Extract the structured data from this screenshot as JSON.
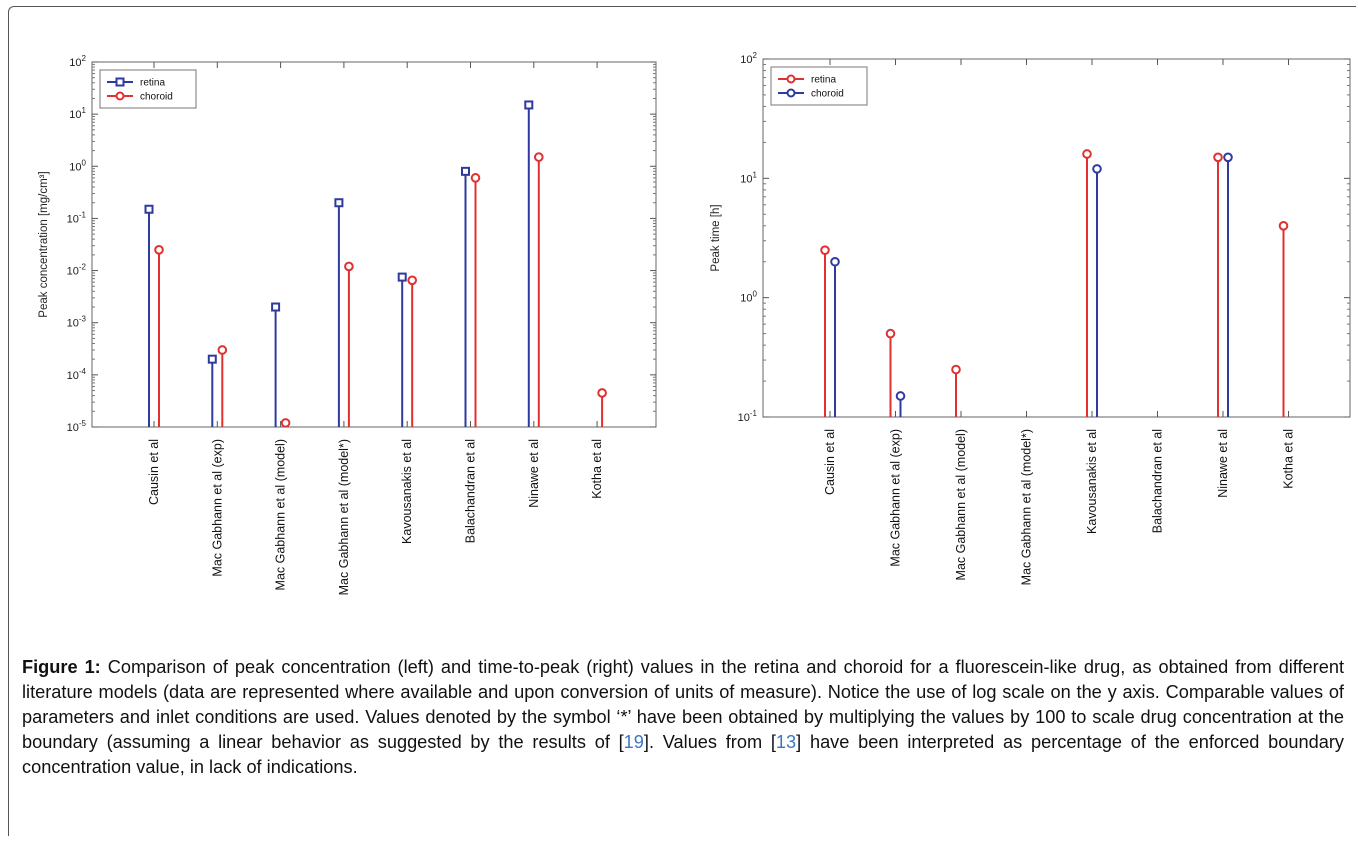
{
  "chart_data": [
    {
      "type": "stem",
      "ylabel": "Peak concentration [mg/cm³]",
      "yscale": "log",
      "ylim": [
        1e-05,
        100
      ],
      "ytick_labels": [
        "10-5",
        "10-4",
        "10-3",
        "10-2",
        "10-1",
        "100",
        "101",
        "102"
      ],
      "categories": [
        "Causin et al",
        "Mac Gabhann et al (exp)",
        "Mac Gabhann et al (model)",
        "Mac Gabhann et al (model*)",
        "Kavousanakis et al",
        "Balachandran et al",
        "Ninawe et al",
        "Kotha et al"
      ],
      "legend_position": "top-left",
      "series": [
        {
          "name": "retina",
          "color": "#2e3a9e",
          "marker": "square",
          "values": [
            0.15,
            0.0002,
            0.002,
            0.2,
            0.0075,
            0.8,
            15,
            null
          ]
        },
        {
          "name": "choroid",
          "color": "#e03030",
          "marker": "circle",
          "values": [
            0.025,
            0.0003,
            1.2e-05,
            0.012,
            0.0065,
            0.6,
            1.5,
            4.5e-05
          ]
        }
      ]
    },
    {
      "type": "stem",
      "ylabel": "Peak time [h]",
      "yscale": "log",
      "ylim": [
        0.1,
        100
      ],
      "ytick_labels": [
        "10-1",
        "100",
        "101",
        "102"
      ],
      "categories": [
        "Causin et al",
        "Mac Gabhann et al (exp)",
        "Mac Gabhann et al (model)",
        "Mac Gabhann et al (model*)",
        "Kavousanakis et al",
        "Balachandran et al",
        "Ninawe et al",
        "Kotha et al"
      ],
      "legend_position": "top-left",
      "series": [
        {
          "name": "retina",
          "color": "#e03030",
          "marker": "circle",
          "values": [
            2.5,
            0.5,
            0.25,
            null,
            16,
            null,
            15,
            4
          ]
        },
        {
          "name": "choroid",
          "color": "#2e3a9e",
          "marker": "circle",
          "values": [
            2,
            0.15,
            null,
            null,
            12,
            null,
            15,
            null
          ]
        }
      ]
    }
  ],
  "caption": {
    "label": "Figure 1:",
    "part1": " Comparison of peak concentration (left) and time-to-peak (right) values in the retina and choroid for a fluorescein-like drug, as obtained from different literature models (data are represented where available and upon conversion of units of measure). Notice the use of log scale on the y axis. Comparable values of parameters and inlet conditions are used. Values denoted by the symbol ‘*’ have been obtained by multiplying the values by 100 to scale drug concentration at the boundary (assuming a linear behavior as suggested by the results of [",
    "ref1": "19",
    "part2": "]. Values from [",
    "ref2": "13",
    "part3": "] have been interpreted as percentage of the enforced boundary concentration value, in lack of indications."
  }
}
